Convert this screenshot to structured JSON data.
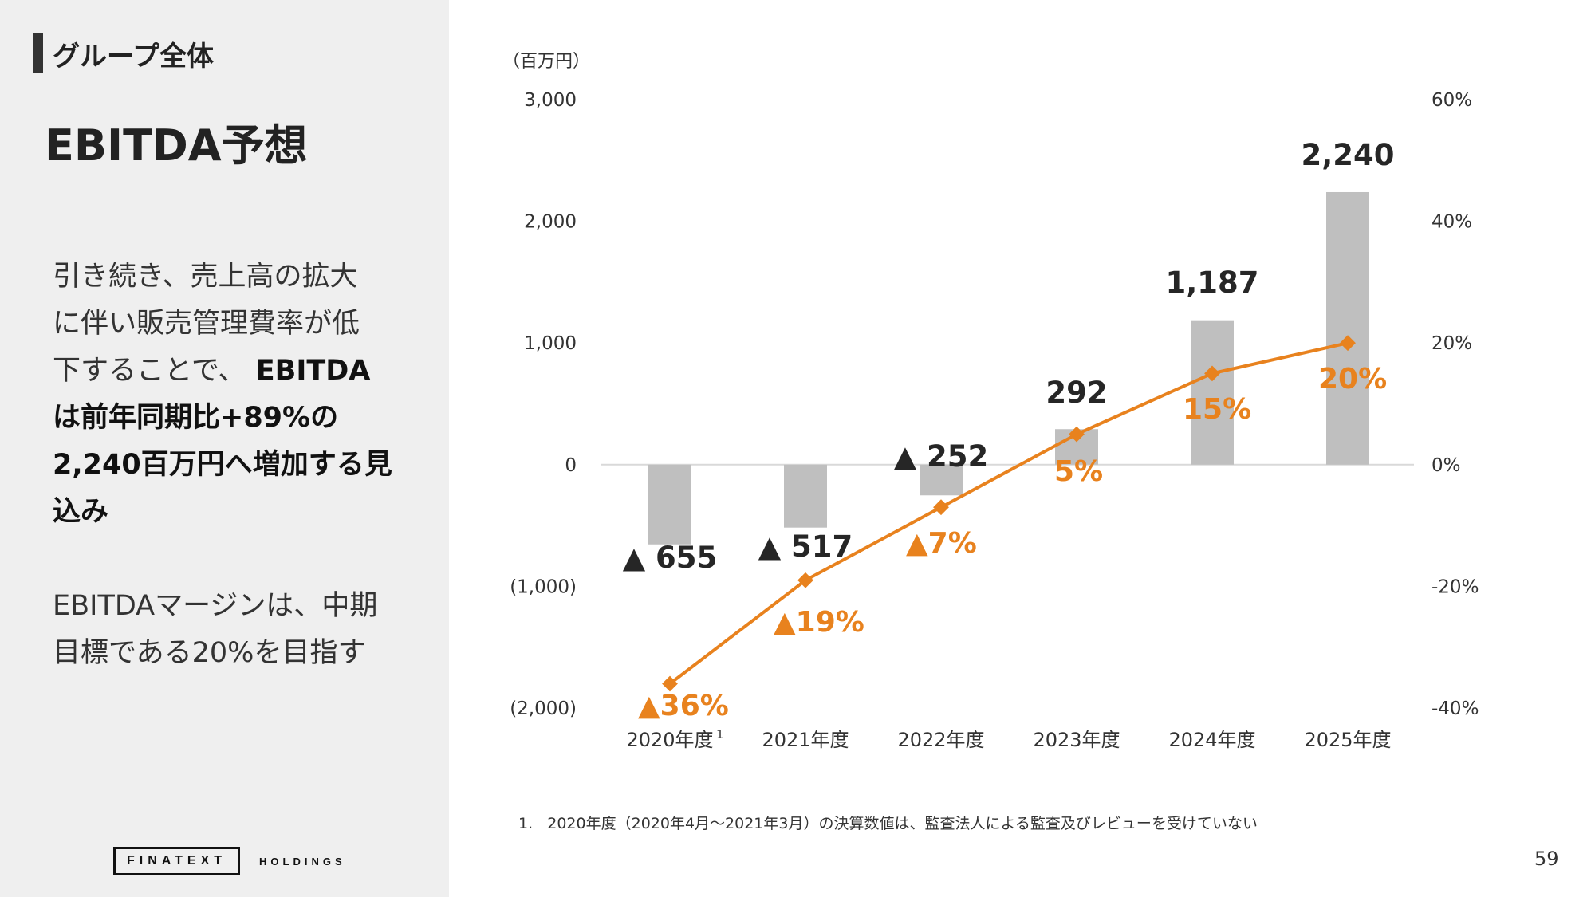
{
  "section": {
    "tag": "グループ全体",
    "title": "EBITDA予想"
  },
  "body": {
    "lines": [
      {
        "text": "引き続き、売上高の拡大",
        "bold": false
      },
      {
        "text": "に伴い販売管理費率が低",
        "bold": false
      },
      {
        "text": "下することで、",
        "bold": false,
        "tail": " EBITDA"
      },
      {
        "text": "は前年同期比+89%の",
        "bold": true
      },
      {
        "text": "2,240百万円へ増加する見",
        "bold": true
      },
      {
        "text": "込み",
        "bold": true
      }
    ],
    "lines2": [
      {
        "text": "EBITDAマージンは、中期"
      },
      {
        "text": "目標である20%を目指す"
      }
    ]
  },
  "logo": {
    "brand": "FINATEXT",
    "sub": "HOLDINGS"
  },
  "footnote": "1.   2020年度（2020年4月～2021年3月）の決算数値は、監査法人による監査及びレビューを受けていない",
  "page_number": "59",
  "colors": {
    "bar": "#bfbfbf",
    "line": "#e8821e",
    "text": "#333333",
    "panel": "#efefef"
  },
  "chart_data": {
    "type": "bar",
    "title": "",
    "unit_label": "（百万円）",
    "categories": [
      "2020年度",
      "2021年度",
      "2022年度",
      "2023年度",
      "2024年度",
      "2025年度"
    ],
    "category_superscripts": [
      "1",
      "",
      "",
      "",
      "",
      ""
    ],
    "y_left": {
      "range": [
        -2000,
        3000
      ],
      "ticks": [
        3000,
        2000,
        1000,
        0,
        -1000,
        -2000
      ],
      "tick_labels": [
        "3,000",
        "2,000",
        "1,000",
        "0",
        "(1,000)",
        "(2,000)"
      ]
    },
    "y_right": {
      "range": [
        -0.4,
        0.6
      ],
      "ticks": [
        0.6,
        0.4,
        0.2,
        0,
        -0.2,
        -0.4
      ],
      "tick_labels": [
        "60%",
        "40%",
        "20%",
        "0%",
        "-20%",
        "-40%"
      ]
    },
    "grid": false,
    "series": [
      {
        "type": "bar",
        "axis": "left",
        "values": [
          -655,
          -517,
          -252,
          292,
          1187,
          2240
        ],
        "labels": [
          "▲ 655",
          "▲ 517",
          "▲ 252",
          "292",
          "1,187",
          "2,240"
        ]
      },
      {
        "type": "line",
        "axis": "right",
        "values": [
          -0.36,
          -0.19,
          -0.07,
          0.05,
          0.15,
          0.2
        ],
        "labels": [
          "▲36%",
          "▲19%",
          "▲7%",
          "5%",
          "15%",
          "20%"
        ]
      }
    ]
  }
}
